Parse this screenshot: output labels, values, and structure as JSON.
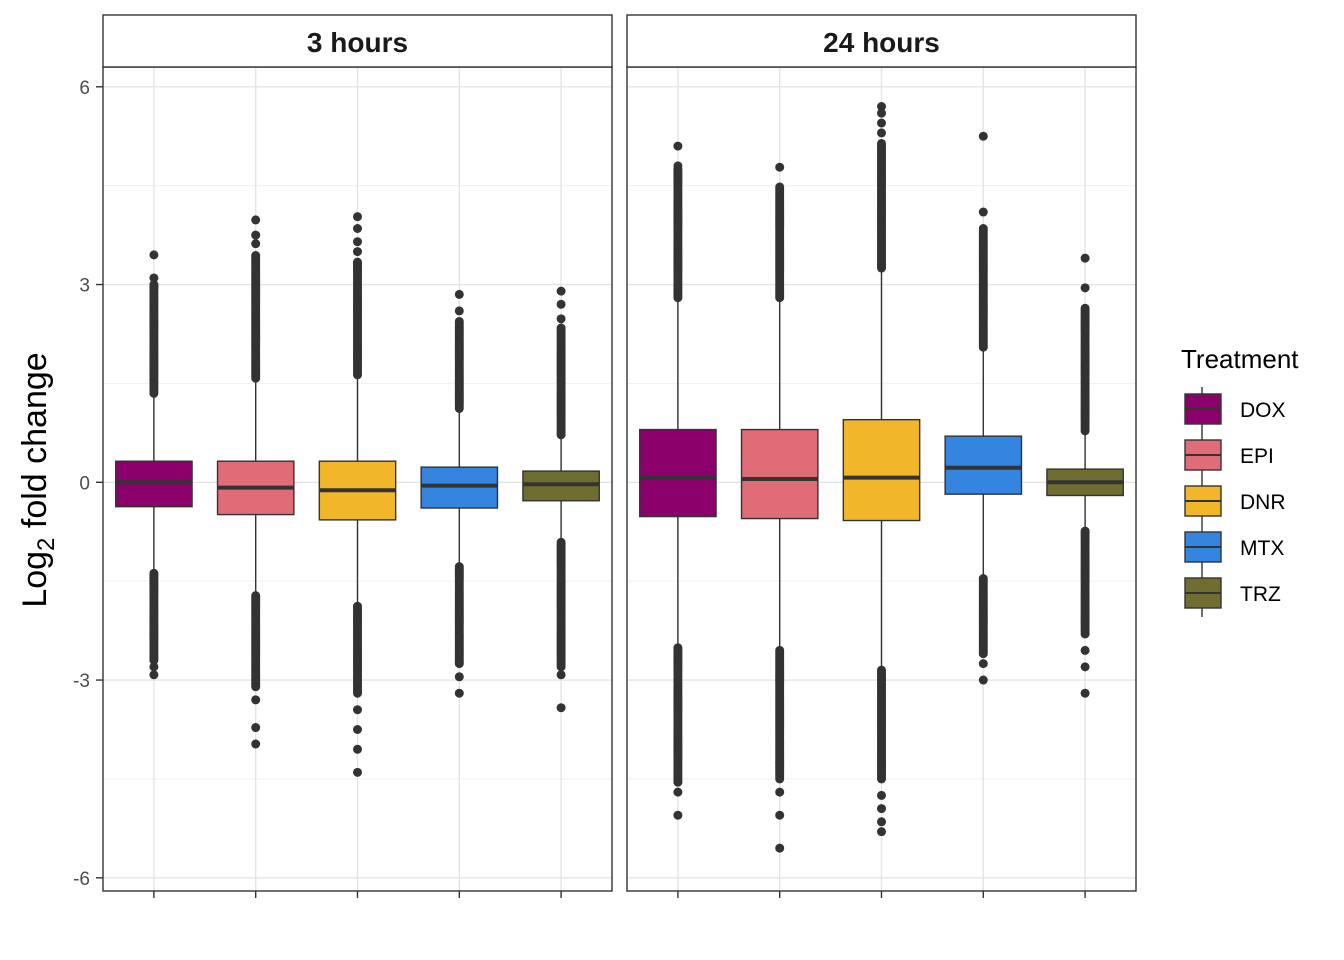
{
  "chart_data": {
    "type": "box",
    "ylabel": {
      "base": "Log",
      "subscript": "2",
      "rest": " fold change"
    },
    "xlabel": "",
    "ylim": [
      -6.2,
      6.3
    ],
    "y_ticks": [
      6,
      3,
      0,
      -3,
      -6
    ],
    "grid": true,
    "legend": {
      "title": "Treatment",
      "position": "right"
    },
    "series": [
      {
        "name": "DOX",
        "color": "#8B006B"
      },
      {
        "name": "EPI",
        "color": "#E06C78"
      },
      {
        "name": "DNR",
        "color": "#F2B62B"
      },
      {
        "name": "MTX",
        "color": "#3385E0"
      },
      {
        "name": "TRZ",
        "color": "#6F6E30"
      }
    ],
    "panels": [
      {
        "title": "3 hours",
        "boxes": [
          {
            "name": "DOX",
            "q1": -0.37,
            "median": 0.0,
            "q3": 0.32,
            "whisker_low": -1.38,
            "whisker_high": 1.35,
            "outlier_high_range": [
              1.35,
              3.0
            ],
            "outlier_low_range": [
              -2.7,
              -1.38
            ],
            "outliers": [
              3.45,
              3.1,
              2.95,
              -2.8,
              -2.92
            ]
          },
          {
            "name": "EPI",
            "color_name": "EPI",
            "q1": -0.49,
            "median": -0.08,
            "q3": 0.32,
            "whisker_low": -1.72,
            "whisker_high": 1.58,
            "outlier_high_range": [
              1.58,
              3.45
            ],
            "outlier_low_range": [
              -3.1,
              -1.72
            ],
            "outliers": [
              3.98,
              3.75,
              3.62,
              -3.3,
              -3.72,
              -3.97
            ]
          },
          {
            "name": "DNR",
            "q1": -0.57,
            "median": -0.12,
            "q3": 0.32,
            "whisker_low": -1.88,
            "whisker_high": 1.63,
            "outlier_high_range": [
              1.63,
              3.35
            ],
            "outlier_low_range": [
              -3.2,
              -1.88
            ],
            "outliers": [
              4.03,
              3.85,
              3.65,
              3.5,
              -3.45,
              -3.75,
              -4.05,
              -4.4
            ]
          },
          {
            "name": "MTX",
            "q1": -0.39,
            "median": -0.05,
            "q3": 0.23,
            "whisker_low": -1.28,
            "whisker_high": 1.12,
            "outlier_high_range": [
              1.12,
              2.45
            ],
            "outlier_low_range": [
              -2.75,
              -1.28
            ],
            "outliers": [
              2.85,
              2.6,
              -2.95,
              -3.2
            ]
          },
          {
            "name": "TRZ",
            "q1": -0.28,
            "median": -0.03,
            "q3": 0.17,
            "whisker_low": -0.9,
            "whisker_high": 0.72,
            "outlier_high_range": [
              0.72,
              2.35
            ],
            "outlier_low_range": [
              -2.8,
              -0.9
            ],
            "outliers": [
              2.9,
              2.7,
              2.48,
              -2.92,
              -3.42
            ]
          }
        ]
      },
      {
        "title": "24 hours",
        "boxes": [
          {
            "name": "DOX",
            "q1": -0.52,
            "median": 0.07,
            "q3": 0.8,
            "whisker_low": -2.5,
            "whisker_high": 2.8,
            "outlier_high_range": [
              2.8,
              4.75
            ],
            "outlier_low_range": [
              -4.55,
              -2.5
            ],
            "outliers": [
              5.1,
              4.8,
              -4.7,
              -5.05
            ]
          },
          {
            "name": "EPI",
            "q1": -0.55,
            "median": 0.05,
            "q3": 0.8,
            "whisker_low": -2.55,
            "whisker_high": 2.8,
            "outlier_high_range": [
              2.8,
              4.5
            ],
            "outlier_low_range": [
              -4.5,
              -2.55
            ],
            "outliers": [
              4.78,
              -4.7,
              -5.05,
              -5.55
            ]
          },
          {
            "name": "DNR",
            "q1": -0.58,
            "median": 0.07,
            "q3": 0.95,
            "whisker_low": -2.85,
            "whisker_high": 3.25,
            "outlier_high_range": [
              3.25,
              5.15
            ],
            "outlier_low_range": [
              -4.5,
              -2.85
            ],
            "outliers": [
              5.7,
              5.6,
              5.45,
              5.3,
              -4.75,
              -4.95,
              -5.15,
              -5.3
            ]
          },
          {
            "name": "MTX",
            "q1": -0.18,
            "median": 0.22,
            "q3": 0.7,
            "whisker_low": -1.45,
            "whisker_high": 2.05,
            "outlier_high_range": [
              2.05,
              3.85
            ],
            "outlier_low_range": [
              -2.6,
              -1.45
            ],
            "outliers": [
              5.25,
              4.1,
              -2.75,
              -3.0
            ]
          },
          {
            "name": "TRZ",
            "q1": -0.2,
            "median": 0.0,
            "q3": 0.2,
            "whisker_low": -0.72,
            "whisker_high": 0.78,
            "outlier_high_range": [
              0.78,
              2.65
            ],
            "outlier_low_range": [
              -2.3,
              -0.72
            ],
            "outliers": [
              3.4,
              2.95,
              -2.55,
              -2.8,
              -3.2
            ]
          }
        ]
      }
    ]
  }
}
